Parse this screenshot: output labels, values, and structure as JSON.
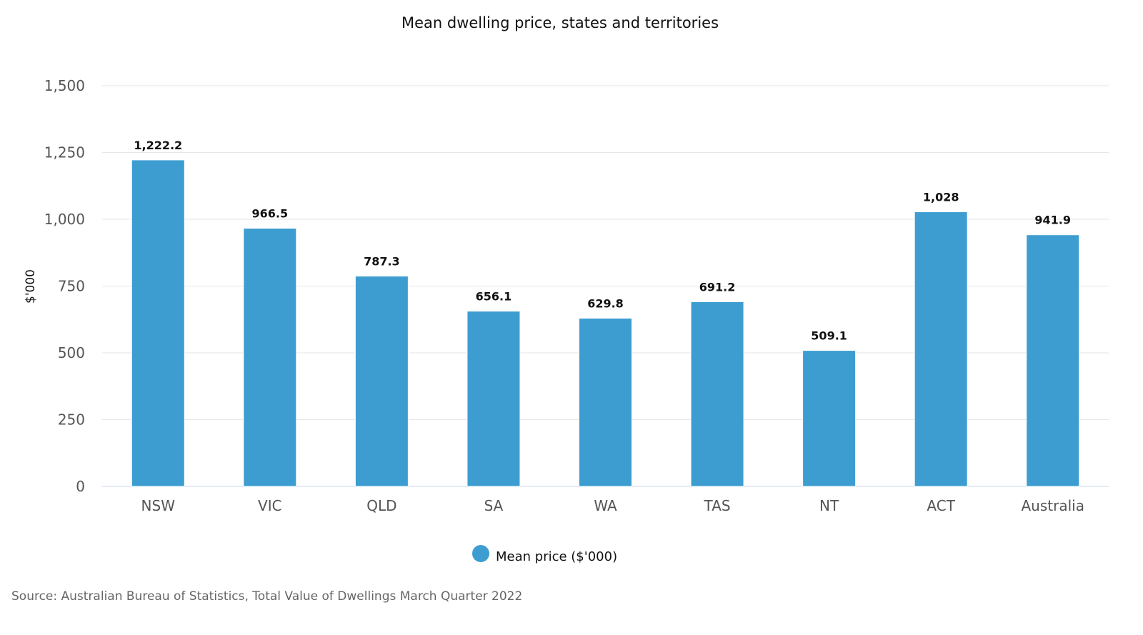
{
  "chart_data": {
    "type": "bar",
    "title": "Mean dwelling price, states and territories",
    "xlabel": "",
    "ylabel": "$'000",
    "ylim": [
      0,
      1500
    ],
    "yticks": [
      0,
      250,
      500,
      750,
      1000,
      1250,
      1500
    ],
    "ytick_labels": [
      "0",
      "250",
      "500",
      "750",
      "1,000",
      "1,250",
      "1,500"
    ],
    "grid": true,
    "categories": [
      "NSW",
      "VIC",
      "QLD",
      "SA",
      "WA",
      "TAS",
      "NT",
      "ACT",
      "Australia"
    ],
    "series": [
      {
        "name": "Mean price ($'000)",
        "color": "#3d9dd1",
        "values": [
          1222.2,
          966.5,
          787.3,
          656.1,
          629.8,
          691.2,
          509.1,
          1028,
          941.9
        ],
        "labels": [
          "1,222.2",
          "966.5",
          "787.3",
          "656.1",
          "629.8",
          "691.2",
          "509.1",
          "1,028",
          "941.9"
        ]
      }
    ],
    "legend_position": "bottom",
    "source": "Source: Australian Bureau of Statistics, Total Value of Dwellings March Quarter 2022"
  }
}
